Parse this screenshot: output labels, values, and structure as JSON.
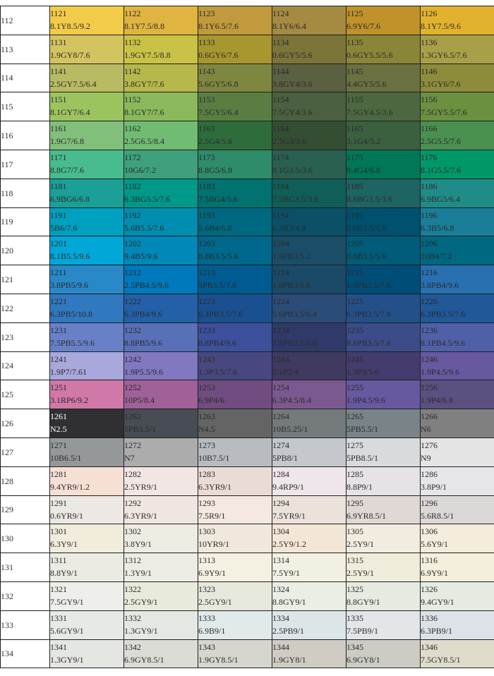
{
  "rows": [
    {
      "label": "112",
      "cells": [
        {
          "code": "1121",
          "munsell": "8.1Y8.5/9.2",
          "color": "#f2cb48"
        },
        {
          "code": "1122",
          "munsell": "8.1Y7.5/8.8",
          "color": "#e0b441"
        },
        {
          "code": "1123",
          "munsell": "8.1Y6.5/7.6",
          "color": "#c09a3c"
        },
        {
          "code": "1124",
          "munsell": "8.1Y6/6.4",
          "color": "#a58a42"
        },
        {
          "code": "1125",
          "munsell": "6.9Y6/7.6",
          "color": "#c0922a"
        },
        {
          "code": "1126",
          "munsell": "8.1Y7.5/9.6",
          "color": "#e2b22e"
        }
      ]
    },
    {
      "label": "113",
      "cells": [
        {
          "code": "1131",
          "munsell": "1.9GY8/7.6",
          "color": "#d4c460"
        },
        {
          "code": "1132",
          "munsell": "1.9GY7.5/8.8",
          "color": "#c9c246"
        },
        {
          "code": "1133",
          "munsell": "0.6GY6/7.6",
          "color": "#a8972e"
        },
        {
          "code": "1134",
          "munsell": "0.6GY5/5.6",
          "color": "#7c7438"
        },
        {
          "code": "1135",
          "munsell": "0.6GY5.5/5.6",
          "color": "#8a8538"
        },
        {
          "code": "1136",
          "munsell": "1.3GY6.5/7.6",
          "color": "#a8a048"
        }
      ]
    },
    {
      "label": "114",
      "cells": [
        {
          "code": "1141",
          "munsell": "2.5GY7.5/6.4",
          "color": "#b8bb62"
        },
        {
          "code": "1142",
          "munsell": "3.8GY7/7.6",
          "color": "#b6b84c"
        },
        {
          "code": "1143",
          "munsell": "5.6GY5/6.8",
          "color": "#7f8640"
        },
        {
          "code": "1144",
          "munsell": "3.8GY4/3.6",
          "color": "#5a6040"
        },
        {
          "code": "1145",
          "munsell": "4.4GY5/5.6",
          "color": "#6b7040"
        },
        {
          "code": "1146",
          "munsell": "3.1GY6/7.6",
          "color": "#8c8c3c"
        }
      ]
    },
    {
      "label": "115",
      "cells": [
        {
          "code": "1151",
          "munsell": "8.1GY7/6.4",
          "color": "#9cc45e"
        },
        {
          "code": "1152",
          "munsell": "8.1GY7/7.6",
          "color": "#8ab85a"
        },
        {
          "code": "1153",
          "munsell": "7.5GY5/6.4",
          "color": "#5a7e42"
        },
        {
          "code": "1154",
          "munsell": "7.5GY4/3.6",
          "color": "#4a6040"
        },
        {
          "code": "1155",
          "munsell": "7.5GY4.5/3.6",
          "color": "#4d6840"
        },
        {
          "code": "1156",
          "munsell": "7.5GY5.5/7.6",
          "color": "#6a9040"
        }
      ]
    },
    {
      "label": "116",
      "cells": [
        {
          "code": "1161",
          "munsell": "1.9G7/6.8",
          "color": "#80c07a"
        },
        {
          "code": "1162",
          "munsell": "2.5G6.5/8.4",
          "color": "#70bc72"
        },
        {
          "code": "1163",
          "munsell": "2.5G4/5.6",
          "color": "#2e6c3c"
        },
        {
          "code": "1164",
          "munsell": "2.5G3/3.6",
          "color": "#344e34"
        },
        {
          "code": "1165",
          "munsell": "3.1G4/5.2",
          "color": "#3a6040"
        },
        {
          "code": "1166",
          "munsell": "2.5G5.5/7.6",
          "color": "#4a9050"
        }
      ]
    },
    {
      "label": "117",
      "cells": [
        {
          "code": "1171",
          "munsell": "8.8G7/7.6",
          "color": "#48bc8e"
        },
        {
          "code": "1172",
          "munsell": "10G6/7.2",
          "color": "#3ea07c"
        },
        {
          "code": "1173",
          "munsell": "8.8G5/6.8",
          "color": "#2e8c6a"
        },
        {
          "code": "1174",
          "munsell": "8.1G3.5/3.6",
          "color": "#2a6050"
        },
        {
          "code": "1175",
          "munsell": "9.4G4/6.8",
          "color": "#007858"
        },
        {
          "code": "1176",
          "munsell": "8.1G5.5/7.6",
          "color": "#009868"
        }
      ]
    },
    {
      "label": "118",
      "cells": [
        {
          "code": "1181",
          "munsell": "6.9BG6/6.8",
          "color": "#1aa096"
        },
        {
          "code": "1182",
          "munsell": "6.3BG5.5/7.6",
          "color": "#009888"
        },
        {
          "code": "1183",
          "munsell": "7.5BG4/5.6",
          "color": "#007270"
        },
        {
          "code": "1184",
          "munsell": "7.5BG3.5/3.6",
          "color": "#105e58"
        },
        {
          "code": "1185",
          "munsell": "8.8BG3.5/3.6",
          "color": "#1e6462"
        },
        {
          "code": "1186",
          "munsell": "6.9BG5/6.4",
          "color": "#208c88"
        }
      ]
    },
    {
      "label": "119",
      "cells": [
        {
          "code": "1191",
          "munsell": "5B6/7.6",
          "color": "#00a0c0"
        },
        {
          "code": "1192",
          "munsell": "5.6B5.5/7.6",
          "color": "#008eb0"
        },
        {
          "code": "1193",
          "munsell": "5.6B4/6.8",
          "color": "#006880"
        },
        {
          "code": "1194",
          "munsell": "6.3B3/4.8",
          "color": "#0c5068"
        },
        {
          "code": "1195",
          "munsell": "5.6B3.5/5.6",
          "color": "#005070"
        },
        {
          "code": "1196",
          "munsell": "6.3B5/6.8",
          "color": "#1a7e98"
        }
      ]
    },
    {
      "label": "120",
      "cells": [
        {
          "code": "1201",
          "munsell": "8.1B5.5/9.6",
          "color": "#00a8d8"
        },
        {
          "code": "1202",
          "munsell": "9.4B5/9.6",
          "color": "#0088b8"
        },
        {
          "code": "1203",
          "munsell": "8.8B3.5/5.6",
          "color": "#00688c"
        },
        {
          "code": "1204",
          "munsell": "1.6PB3/5.2",
          "color": "#1a4e68"
        },
        {
          "code": "1205",
          "munsell": "8.8B3.5/5.6",
          "color": "#005c78"
        },
        {
          "code": "1206",
          "munsell": "10B4/7.2",
          "color": "#006880"
        }
      ]
    },
    {
      "label": "121",
      "cells": [
        {
          "code": "1211",
          "munsell": "3.8PB5/9.6",
          "color": "#2888c8"
        },
        {
          "code": "1212",
          "munsell": "2.5PB4.5/9.6",
          "color": "#0078bc"
        },
        {
          "code": "1213",
          "munsell": "5PB3.5/7.6",
          "color": "#005c90"
        },
        {
          "code": "1214",
          "munsell": "1.8PB3/5.6",
          "color": "#1a4a68"
        },
        {
          "code": "1215",
          "munsell": "1.9PB3.5/7.6",
          "color": "#004e78"
        },
        {
          "code": "1216",
          "munsell": "3.8PB4/9.6",
          "color": "#2870b0"
        }
      ]
    },
    {
      "label": "122",
      "cells": [
        {
          "code": "1221",
          "munsell": "6.3PB5/10.8",
          "color": "#3078c0"
        },
        {
          "code": "1222",
          "munsell": "6.3PB4/9.6",
          "color": "#2460a8"
        },
        {
          "code": "1223",
          "munsell": "6.3PB3.5/7.6",
          "color": "#1a5090"
        },
        {
          "code": "1224",
          "munsell": "5.6PB3.5/6.4",
          "color": "#2c4c78"
        },
        {
          "code": "1225",
          "munsell": "6.3PB3.5/7.6",
          "color": "#24508a"
        },
        {
          "code": "1226",
          "munsell": "6.3PB3.5/7.6",
          "color": "#205898"
        }
      ]
    },
    {
      "label": "123",
      "cells": [
        {
          "code": "1231",
          "munsell": "7.5PB5.5/9.6",
          "color": "#6880c8"
        },
        {
          "code": "1232",
          "munsell": "8.8PB5/9.6",
          "color": "#5870b8"
        },
        {
          "code": "1233",
          "munsell": "8.8PB4/9.6",
          "color": "#3c509c"
        },
        {
          "code": "1234",
          "munsell": "7.5PB2.5/5.6",
          "color": "#303a68"
        },
        {
          "code": "1235",
          "munsell": "8.8PB3.5/7.6",
          "color": "#3c4c88"
        },
        {
          "code": "1236",
          "munsell": "8.1PB4.5/9.6",
          "color": "#5060a8"
        }
      ]
    },
    {
      "label": "124",
      "cells": [
        {
          "code": "1241",
          "munsell": "1.9P7/7.61",
          "color": "#a8a8dc"
        },
        {
          "code": "1242",
          "munsell": "1.9P5.5/9.6",
          "color": "#8078c0"
        },
        {
          "code": "1243",
          "munsell": "1.3P3.5/7.6",
          "color": "#484880"
        },
        {
          "code": "1244",
          "munsell": "5.1P2/4",
          "color": "#3e3a60"
        },
        {
          "code": "1245",
          "munsell": "1.3P3/5.6",
          "color": "#443c6c"
        },
        {
          "code": "1246",
          "munsell": "1.9P4.5/9.6",
          "color": "#6858a0"
        }
      ]
    },
    {
      "label": "125",
      "cells": [
        {
          "code": "1251",
          "munsell": "3.1RP6/9.2",
          "color": "#d078a8"
        },
        {
          "code": "1252",
          "munsell": "10P5/8.4",
          "color": "#a06098"
        },
        {
          "code": "1253",
          "munsell": "6.9P4/6",
          "color": "#704c80"
        },
        {
          "code": "1254",
          "munsell": "6.3P4.5/8.4",
          "color": "#7c5890"
        },
        {
          "code": "1255",
          "munsell": "1.9P4.5/9.6",
          "color": "#6858a0"
        },
        {
          "code": "1256",
          "munsell": "1.9P4/6.8",
          "color": "#5c5080"
        }
      ]
    },
    {
      "label": "126",
      "cells": [
        {
          "code": "1261",
          "munsell": "N2.5",
          "color": "#303032"
        },
        {
          "code": "1262",
          "munsell": "5PB3.5/1",
          "color": "#484c54"
        },
        {
          "code": "1263",
          "munsell": "N4.5",
          "color": "#646464"
        },
        {
          "code": "1264",
          "munsell": "10B5.25/1",
          "color": "#747a7c"
        },
        {
          "code": "1265",
          "munsell": "5PB5.5/1",
          "color": "#788488"
        },
        {
          "code": "1266",
          "munsell": "N6",
          "color": "#808080"
        }
      ]
    },
    {
      "label": "127",
      "cells": [
        {
          "code": "1271",
          "munsell": "10B6.5/1",
          "color": "#949898"
        },
        {
          "code": "1272",
          "munsell": "N7",
          "color": "#acacac"
        },
        {
          "code": "1273",
          "munsell": "10B7.5/1",
          "color": "#b8bcc0"
        },
        {
          "code": "1274",
          "munsell": "5PB8/1",
          "color": "#c4c8cc"
        },
        {
          "code": "1275",
          "munsell": "5PB8.5/1",
          "color": "#d8dadc"
        },
        {
          "code": "1276",
          "munsell": "N9",
          "color": "#e4e4e4"
        }
      ]
    },
    {
      "label": "128",
      "cells": [
        {
          "code": "1281",
          "munsell": "9.4YR9/1.2",
          "color": "#f6e0d4"
        },
        {
          "code": "1282",
          "munsell": "2.5YR9/1",
          "color": "#f2e6e4"
        },
        {
          "code": "1283",
          "munsell": "6.3YR9/1",
          "color": "#eadcd4"
        },
        {
          "code": "1284",
          "munsell": "9.4RP9/1",
          "color": "#eee6ea"
        },
        {
          "code": "1285",
          "munsell": "8.8P9/1",
          "color": "#e6e2e6"
        },
        {
          "code": "1286",
          "munsell": "3.8P9/1",
          "color": "#e6e6ea"
        }
      ]
    },
    {
      "label": "129",
      "cells": [
        {
          "code": "1291",
          "munsell": "0.6YR9/1",
          "color": "#ece8e4"
        },
        {
          "code": "1292",
          "munsell": "6.3YR9/1",
          "color": "#efe6e2"
        },
        {
          "code": "1293",
          "munsell": "7.5R9/1",
          "color": "#f4e8e0"
        },
        {
          "code": "1294",
          "munsell": "7.5YR9/1",
          "color": "#ebe2da"
        },
        {
          "code": "1295",
          "munsell": "6.9YR8.5/1",
          "color": "#e0d8d4"
        },
        {
          "code": "1296",
          "munsell": "5.6R8.5/1",
          "color": "#dcd8d8"
        }
      ]
    },
    {
      "label": "130",
      "cells": [
        {
          "code": "1301",
          "munsell": "6.3Y9/1",
          "color": "#f2ecdc"
        },
        {
          "code": "1302",
          "munsell": "3.8Y9/1",
          "color": "#eeece2"
        },
        {
          "code": "1303",
          "munsell": "10YR9/1",
          "color": "#f0e8dc"
        },
        {
          "code": "1304",
          "munsell": "2.5Y9/1.2",
          "color": "#f4e6d6"
        },
        {
          "code": "1305",
          "munsell": "2.5Y9/1",
          "color": "#f2ece0"
        },
        {
          "code": "1306",
          "munsell": "5.6Y9/1",
          "color": "#f4ecdc"
        }
      ]
    },
    {
      "label": "131",
      "cells": [
        {
          "code": "1311",
          "munsell": "8.8Y9/1",
          "color": "#ebebe4"
        },
        {
          "code": "1312",
          "munsell": "1.3Y9/1",
          "color": "#ececE4"
        },
        {
          "code": "1313",
          "munsell": "6.9Y9/1",
          "color": "#f4f0e2"
        },
        {
          "code": "1314",
          "munsell": "7.5Y9/1",
          "color": "#f2f0e2"
        },
        {
          "code": "1315",
          "munsell": "2.5Y9/1",
          "color": "#f0ecdc"
        },
        {
          "code": "1316",
          "munsell": "6.9Y9/1",
          "color": "#f4eedc"
        }
      ]
    },
    {
      "label": "132",
      "cells": [
        {
          "code": "1321",
          "munsell": "7.5GY9/1",
          "color": "#eeeeea"
        },
        {
          "code": "1322",
          "munsell": "2.5GY9/1",
          "color": "#e8eadc"
        },
        {
          "code": "1323",
          "munsell": "2.5GY9/1",
          "color": "#e6e8dc"
        },
        {
          "code": "1324",
          "munsell": "8.8GY9/1",
          "color": "#eaeee4"
        },
        {
          "code": "1325",
          "munsell": "8.8GY9/1",
          "color": "#e6ebe2"
        },
        {
          "code": "1326",
          "munsell": "9.4GY9/1",
          "color": "#e6ebe2"
        }
      ]
    },
    {
      "label": "133",
      "cells": [
        {
          "code": "1331",
          "munsell": "5.6GY9/1",
          "color": "#e6eae4"
        },
        {
          "code": "1332",
          "munsell": "1.3GY9/1",
          "color": "#e4e8e2"
        },
        {
          "code": "1333",
          "munsell": "6.9B9/1",
          "color": "#e0eaea"
        },
        {
          "code": "1334",
          "munsell": "2.5PB9/1",
          "color": "#dce6e8"
        },
        {
          "code": "1335",
          "munsell": "7.5PB9/1",
          "color": "#e2e6e8"
        },
        {
          "code": "1336",
          "munsell": "6.3PB9/1",
          "color": "#dce2e8"
        }
      ]
    },
    {
      "label": "134",
      "cells": [
        {
          "code": "1341",
          "munsell": "1.3GY9/1",
          "color": "#e4e6e2"
        },
        {
          "code": "1342",
          "munsell": "6.9GY8.5/1",
          "color": "#dcdcd6"
        },
        {
          "code": "1343",
          "munsell": "1.9GY8.5/1",
          "color": "#d6d6ce"
        },
        {
          "code": "1344",
          "munsell": "1.9GY8/1",
          "color": "#d0ccc4"
        },
        {
          "code": "1345",
          "munsell": "6.9GY8/1",
          "color": "#ccccc4"
        },
        {
          "code": "1346",
          "munsell": "7.5GY8.5/1",
          "color": "#e0dccc"
        }
      ]
    }
  ],
  "light_text_color": "#ffffff",
  "light_text_codes": [
    "1261"
  ]
}
